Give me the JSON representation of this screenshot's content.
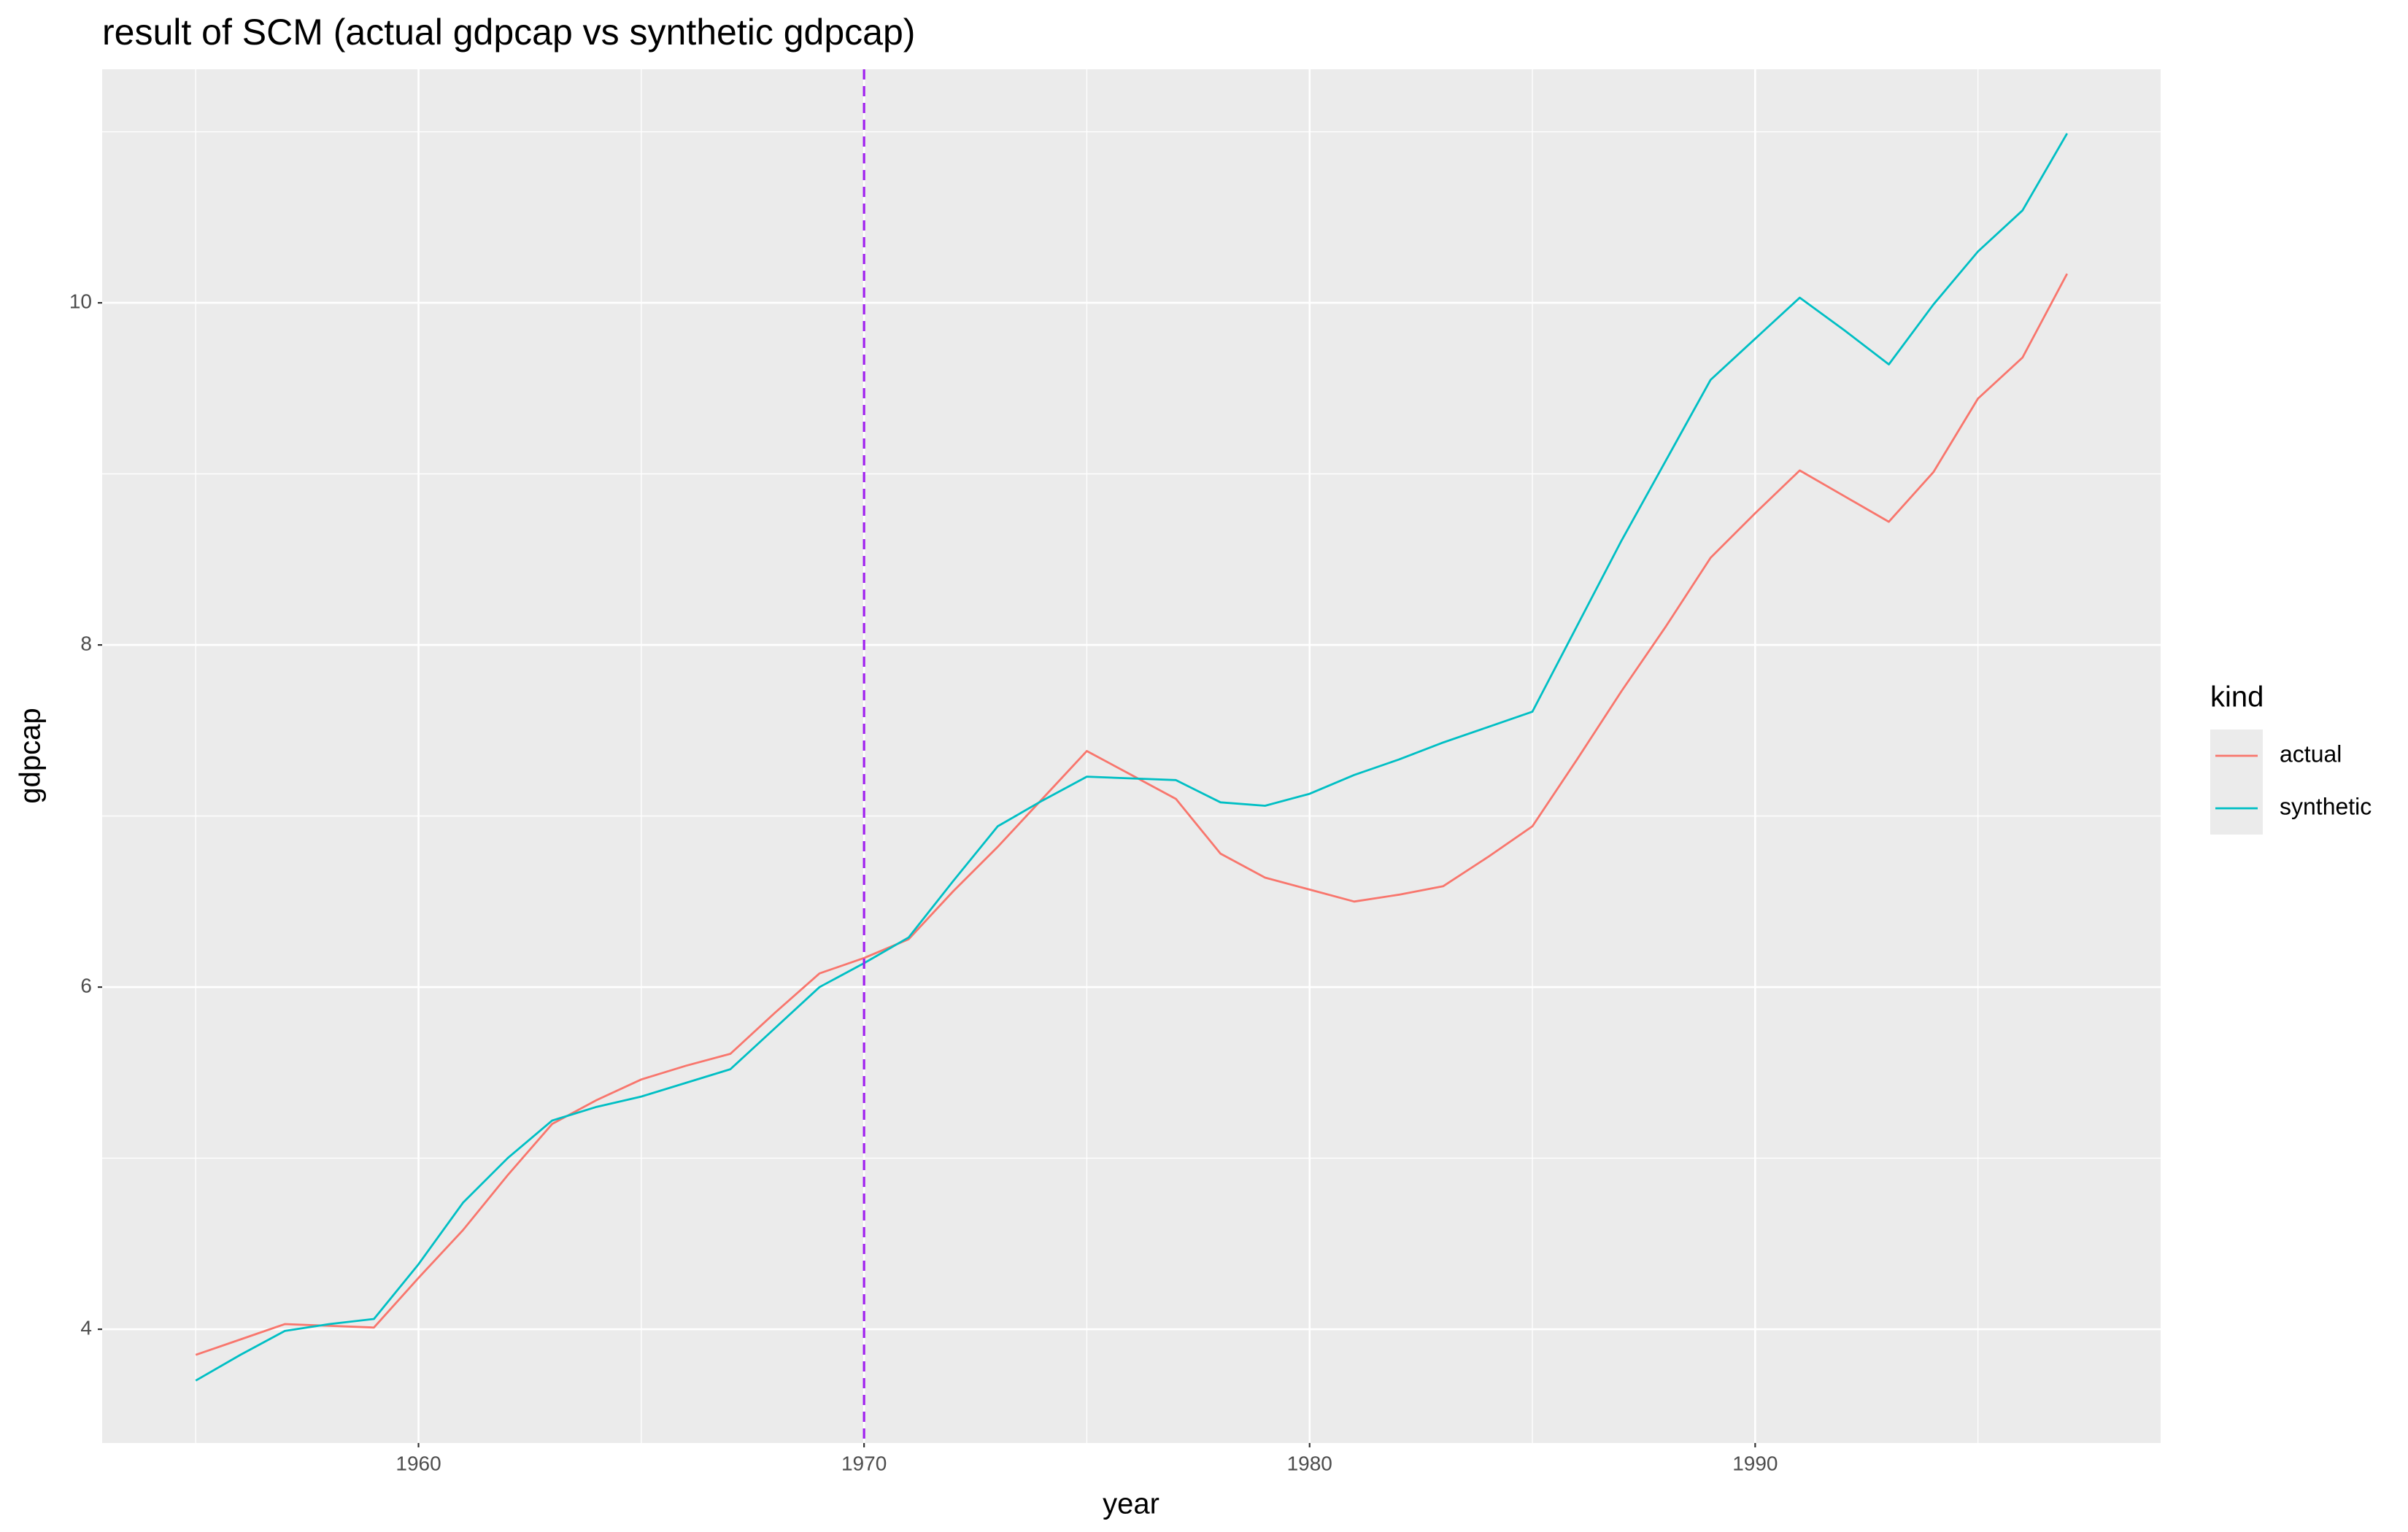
{
  "chart_data": {
    "type": "line",
    "title": "result of SCM (actual gdpcap vs synthetic gdpcap)",
    "x_label": "year",
    "y_label": "gdpcap",
    "x": [
      1955,
      1956,
      1957,
      1958,
      1959,
      1960,
      1961,
      1962,
      1963,
      1964,
      1965,
      1966,
      1967,
      1968,
      1969,
      1970,
      1971,
      1972,
      1973,
      1974,
      1975,
      1976,
      1977,
      1978,
      1979,
      1980,
      1981,
      1982,
      1983,
      1984,
      1985,
      1986,
      1987,
      1988,
      1989,
      1990,
      1991,
      1992,
      1993,
      1994,
      1995,
      1996,
      1997
    ],
    "series": [
      {
        "name": "actual",
        "color": "#F8766D",
        "values": [
          3.85,
          3.94,
          4.03,
          4.02,
          4.01,
          4.3,
          4.58,
          4.9,
          5.2,
          5.34,
          5.46,
          5.54,
          5.61,
          5.85,
          6.08,
          6.17,
          6.28,
          6.56,
          6.82,
          7.1,
          7.38,
          7.24,
          7.1,
          6.78,
          6.64,
          6.57,
          6.5,
          6.54,
          6.59,
          6.76,
          6.94,
          7.33,
          7.73,
          8.11,
          8.51,
          8.77,
          9.02,
          8.87,
          8.72,
          9.01,
          9.44,
          9.68,
          10.17
        ]
      },
      {
        "name": "synthetic",
        "color": "#00BFC4",
        "values": [
          3.7,
          3.85,
          3.99,
          4.03,
          4.06,
          4.38,
          4.74,
          5.0,
          5.22,
          5.3,
          5.36,
          5.44,
          5.52,
          5.76,
          6.0,
          6.14,
          6.29,
          6.62,
          6.94,
          7.09,
          7.23,
          7.22,
          7.21,
          7.08,
          7.06,
          7.13,
          7.24,
          7.33,
          7.43,
          7.52,
          7.61,
          8.11,
          8.61,
          9.08,
          9.55,
          9.79,
          10.03,
          9.84,
          9.64,
          9.99,
          10.3,
          10.54,
          10.99
        ]
      }
    ],
    "xlim": [
      1952.9,
      1999.1
    ],
    "xticks": [
      1960,
      1970,
      1980,
      1990
    ],
    "minor_xticks": [
      1955,
      1965,
      1975,
      1985,
      1995
    ],
    "ylim": [
      3.335,
      11.365
    ],
    "yticks": [
      4,
      6,
      8,
      10
    ],
    "minor_yticks": [
      5,
      7,
      9,
      11
    ],
    "grid": true,
    "vline": {
      "x": 1970,
      "color": "#A020F0"
    },
    "legend": {
      "title": "kind",
      "position": "right"
    }
  }
}
